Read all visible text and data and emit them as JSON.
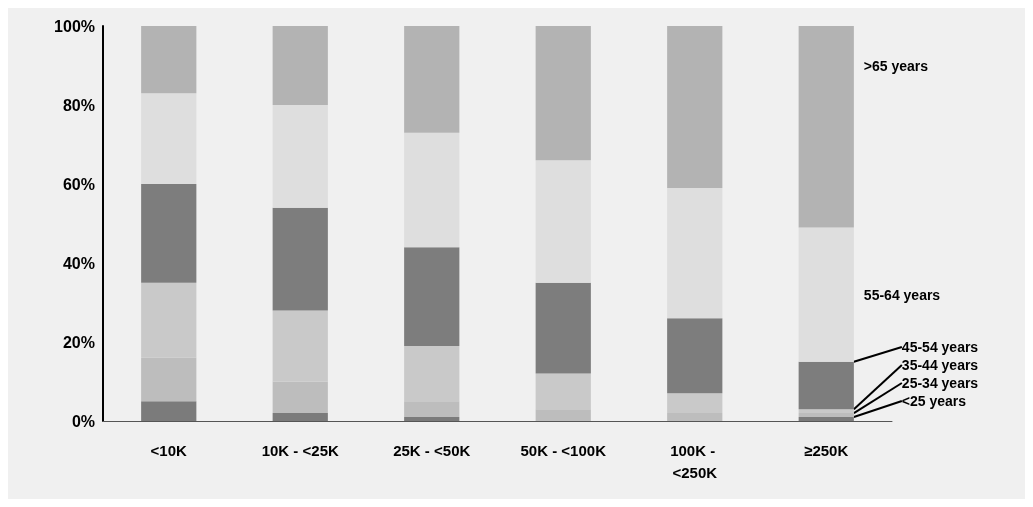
{
  "chart_data": {
    "type": "bar",
    "stacked": true,
    "categories": [
      "<10K",
      "10K - <25K",
      "25K - <50K",
      "50K - <100K",
      "100K - <250K",
      "≥250K"
    ],
    "ylim": [
      0,
      100
    ],
    "yticks": [
      {
        "value": 0,
        "label": "0%"
      },
      {
        "value": 20,
        "label": "20%"
      },
      {
        "value": 40,
        "label": "40%"
      },
      {
        "value": 60,
        "label": "60%"
      },
      {
        "value": 80,
        "label": "80%"
      },
      {
        "value": 100,
        "label": "100%"
      }
    ],
    "grid": false,
    "legend": false,
    "series": [
      {
        "name": "<25 years",
        "color": "#7b7b7b",
        "values": [
          5,
          2,
          1,
          0,
          0,
          1
        ]
      },
      {
        "name": "25-34 years",
        "color": "#bdbdbd",
        "values": [
          11,
          8,
          4,
          3,
          2,
          1
        ]
      },
      {
        "name": "35-44 years",
        "color": "#c9c9c9",
        "values": [
          19,
          18,
          14,
          9,
          5,
          1
        ]
      },
      {
        "name": "45-54 years",
        "color": "#7d7d7d",
        "values": [
          25,
          26,
          25,
          23,
          19,
          12
        ]
      },
      {
        "name": "55-64 years",
        "color": "#dedede",
        "values": [
          23,
          26,
          29,
          31,
          33,
          34
        ]
      },
      {
        "name": ">65 years",
        "color": "#b3b3b3",
        "values": [
          17,
          20,
          27,
          34,
          41,
          51
        ]
      }
    ]
  }
}
